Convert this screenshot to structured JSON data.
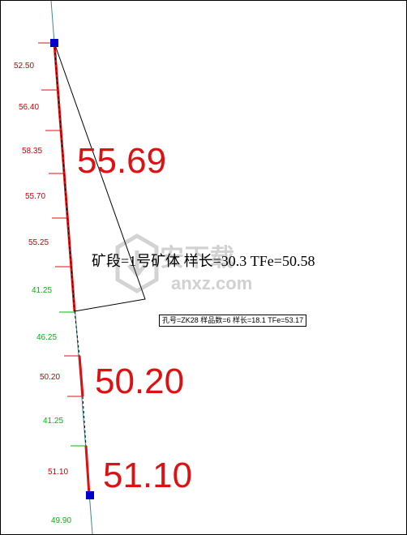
{
  "section": {
    "summary_label": "矿段=1号矿体 样长=30.3 TFe=50.58",
    "hole_info": "孔号=ZK28 样品数=6 样长=18.1 TFe=53.17"
  },
  "samples": [
    {
      "value": "52.50",
      "color": "#cc0000"
    },
    {
      "value": "56.40",
      "color": "#cc0000"
    },
    {
      "value": "58.35",
      "color": "#cc0000"
    },
    {
      "value": "55.70",
      "color": "#cc0000"
    },
    {
      "value": "55.25",
      "color": "#cc0000"
    },
    {
      "value": "41.25",
      "color": "#00bb00"
    },
    {
      "value": "46.25",
      "color": "#00bb00"
    },
    {
      "value": "50.20",
      "color": "#cc0000"
    },
    {
      "value": "41.25",
      "color": "#00bb00"
    },
    {
      "value": "51.10",
      "color": "#cc0000"
    },
    {
      "value": "49.90",
      "color": "#00bb00"
    }
  ],
  "ore_intervals": [
    {
      "grade": "55.69"
    },
    {
      "grade": "50.20"
    },
    {
      "grade": "51.10"
    }
  ],
  "watermark": {
    "brand": "安下载",
    "domain": "anxz.com"
  },
  "colors": {
    "ore": "#dd1111",
    "low_grade": "#00bb00",
    "drill_line": "#3a8a8a",
    "marker": "#0000cc"
  }
}
